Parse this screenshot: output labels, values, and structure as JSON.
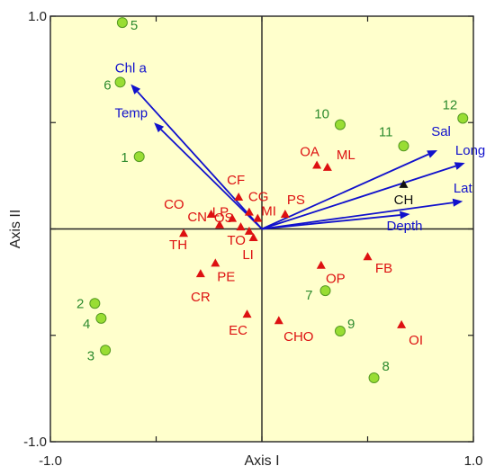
{
  "colors": {
    "background": "#ffffcc",
    "frame": "#222222",
    "site": "#99dd33",
    "site_stroke": "#559922",
    "site_label": "#2e8b2e",
    "species": "#dd1111",
    "species_black": "#111111",
    "arrow": "#1111cc"
  },
  "chart_data": {
    "type": "scatter",
    "xlabel": "Axis I",
    "ylabel": "Axis II",
    "xlim": [
      -1.0,
      1.0
    ],
    "ylim": [
      -1.0,
      1.0
    ],
    "grid": false,
    "x_tick_labels": [
      {
        "value": -1.0,
        "label": "-1.0"
      },
      {
        "value": 1.0,
        "label": "1.0"
      }
    ],
    "y_tick_labels": [
      {
        "value": 1.0,
        "label": "1.0"
      },
      {
        "value": -1.0,
        "label": "-1.0"
      }
    ],
    "minor_ticks": [
      -0.5,
      0.5
    ],
    "sites": [
      {
        "label": "1",
        "x": -0.58,
        "y": 0.34
      },
      {
        "label": "2",
        "x": -0.79,
        "y": -0.35
      },
      {
        "label": "3",
        "x": -0.74,
        "y": -0.57
      },
      {
        "label": "4",
        "x": -0.76,
        "y": -0.42
      },
      {
        "label": "5",
        "x": -0.66,
        "y": 0.97
      },
      {
        "label": "6",
        "x": -0.67,
        "y": 0.69
      },
      {
        "label": "7",
        "x": 0.3,
        "y": -0.29
      },
      {
        "label": "8",
        "x": 0.53,
        "y": -0.7
      },
      {
        "label": "9",
        "x": 0.37,
        "y": -0.48
      },
      {
        "label": "10",
        "x": 0.37,
        "y": 0.49
      },
      {
        "label": "11",
        "x": 0.67,
        "y": 0.39
      },
      {
        "label": "12",
        "x": 0.95,
        "y": 0.52
      }
    ],
    "species": [
      {
        "label": "OA",
        "x": 0.26,
        "y": 0.3,
        "color": "red"
      },
      {
        "label": "ML",
        "x": 0.31,
        "y": 0.29,
        "color": "red"
      },
      {
        "label": "CH",
        "x": 0.67,
        "y": 0.21,
        "color": "black"
      },
      {
        "label": "PS",
        "x": 0.11,
        "y": 0.07,
        "color": "red"
      },
      {
        "label": "CF",
        "x": -0.11,
        "y": 0.15,
        "color": "red"
      },
      {
        "label": "CG",
        "x": -0.06,
        "y": 0.08,
        "color": "red"
      },
      {
        "label": "CO",
        "x": -0.24,
        "y": 0.07,
        "color": "red"
      },
      {
        "label": "LP",
        "x": -0.14,
        "y": 0.05,
        "color": "red"
      },
      {
        "label": "MI",
        "x": -0.02,
        "y": 0.05,
        "color": "red"
      },
      {
        "label": "CN",
        "x": -0.2,
        "y": 0.02,
        "color": "red"
      },
      {
        "label": "OS",
        "x": -0.1,
        "y": 0.01,
        "color": "red"
      },
      {
        "label": "TO",
        "x": -0.06,
        "y": -0.01,
        "color": "red"
      },
      {
        "label": "TH",
        "x": -0.37,
        "y": -0.02,
        "color": "red"
      },
      {
        "label": "LI",
        "x": -0.04,
        "y": -0.04,
        "color": "red"
      },
      {
        "label": "PE",
        "x": -0.22,
        "y": -0.16,
        "color": "red"
      },
      {
        "label": "CR",
        "x": -0.29,
        "y": -0.21,
        "color": "red"
      },
      {
        "label": "FB",
        "x": 0.5,
        "y": -0.13,
        "color": "red"
      },
      {
        "label": "OP",
        "x": 0.28,
        "y": -0.17,
        "color": "red"
      },
      {
        "label": "EC",
        "x": -0.07,
        "y": -0.4,
        "color": "red"
      },
      {
        "label": "CHO",
        "x": 0.08,
        "y": -0.43,
        "color": "red"
      },
      {
        "label": "OI",
        "x": 0.66,
        "y": -0.45,
        "color": "red"
      }
    ],
    "environmental_vectors": [
      {
        "label": "Chl a",
        "x": -0.62,
        "y": 0.68
      },
      {
        "label": "Temp",
        "x": -0.51,
        "y": 0.5
      },
      {
        "label": "Sal",
        "x": 0.83,
        "y": 0.37
      },
      {
        "label": "Long",
        "x": 0.96,
        "y": 0.31
      },
      {
        "label": "Lat",
        "x": 0.95,
        "y": 0.13
      },
      {
        "label": "Depth",
        "x": 0.7,
        "y": 0.07
      }
    ]
  }
}
